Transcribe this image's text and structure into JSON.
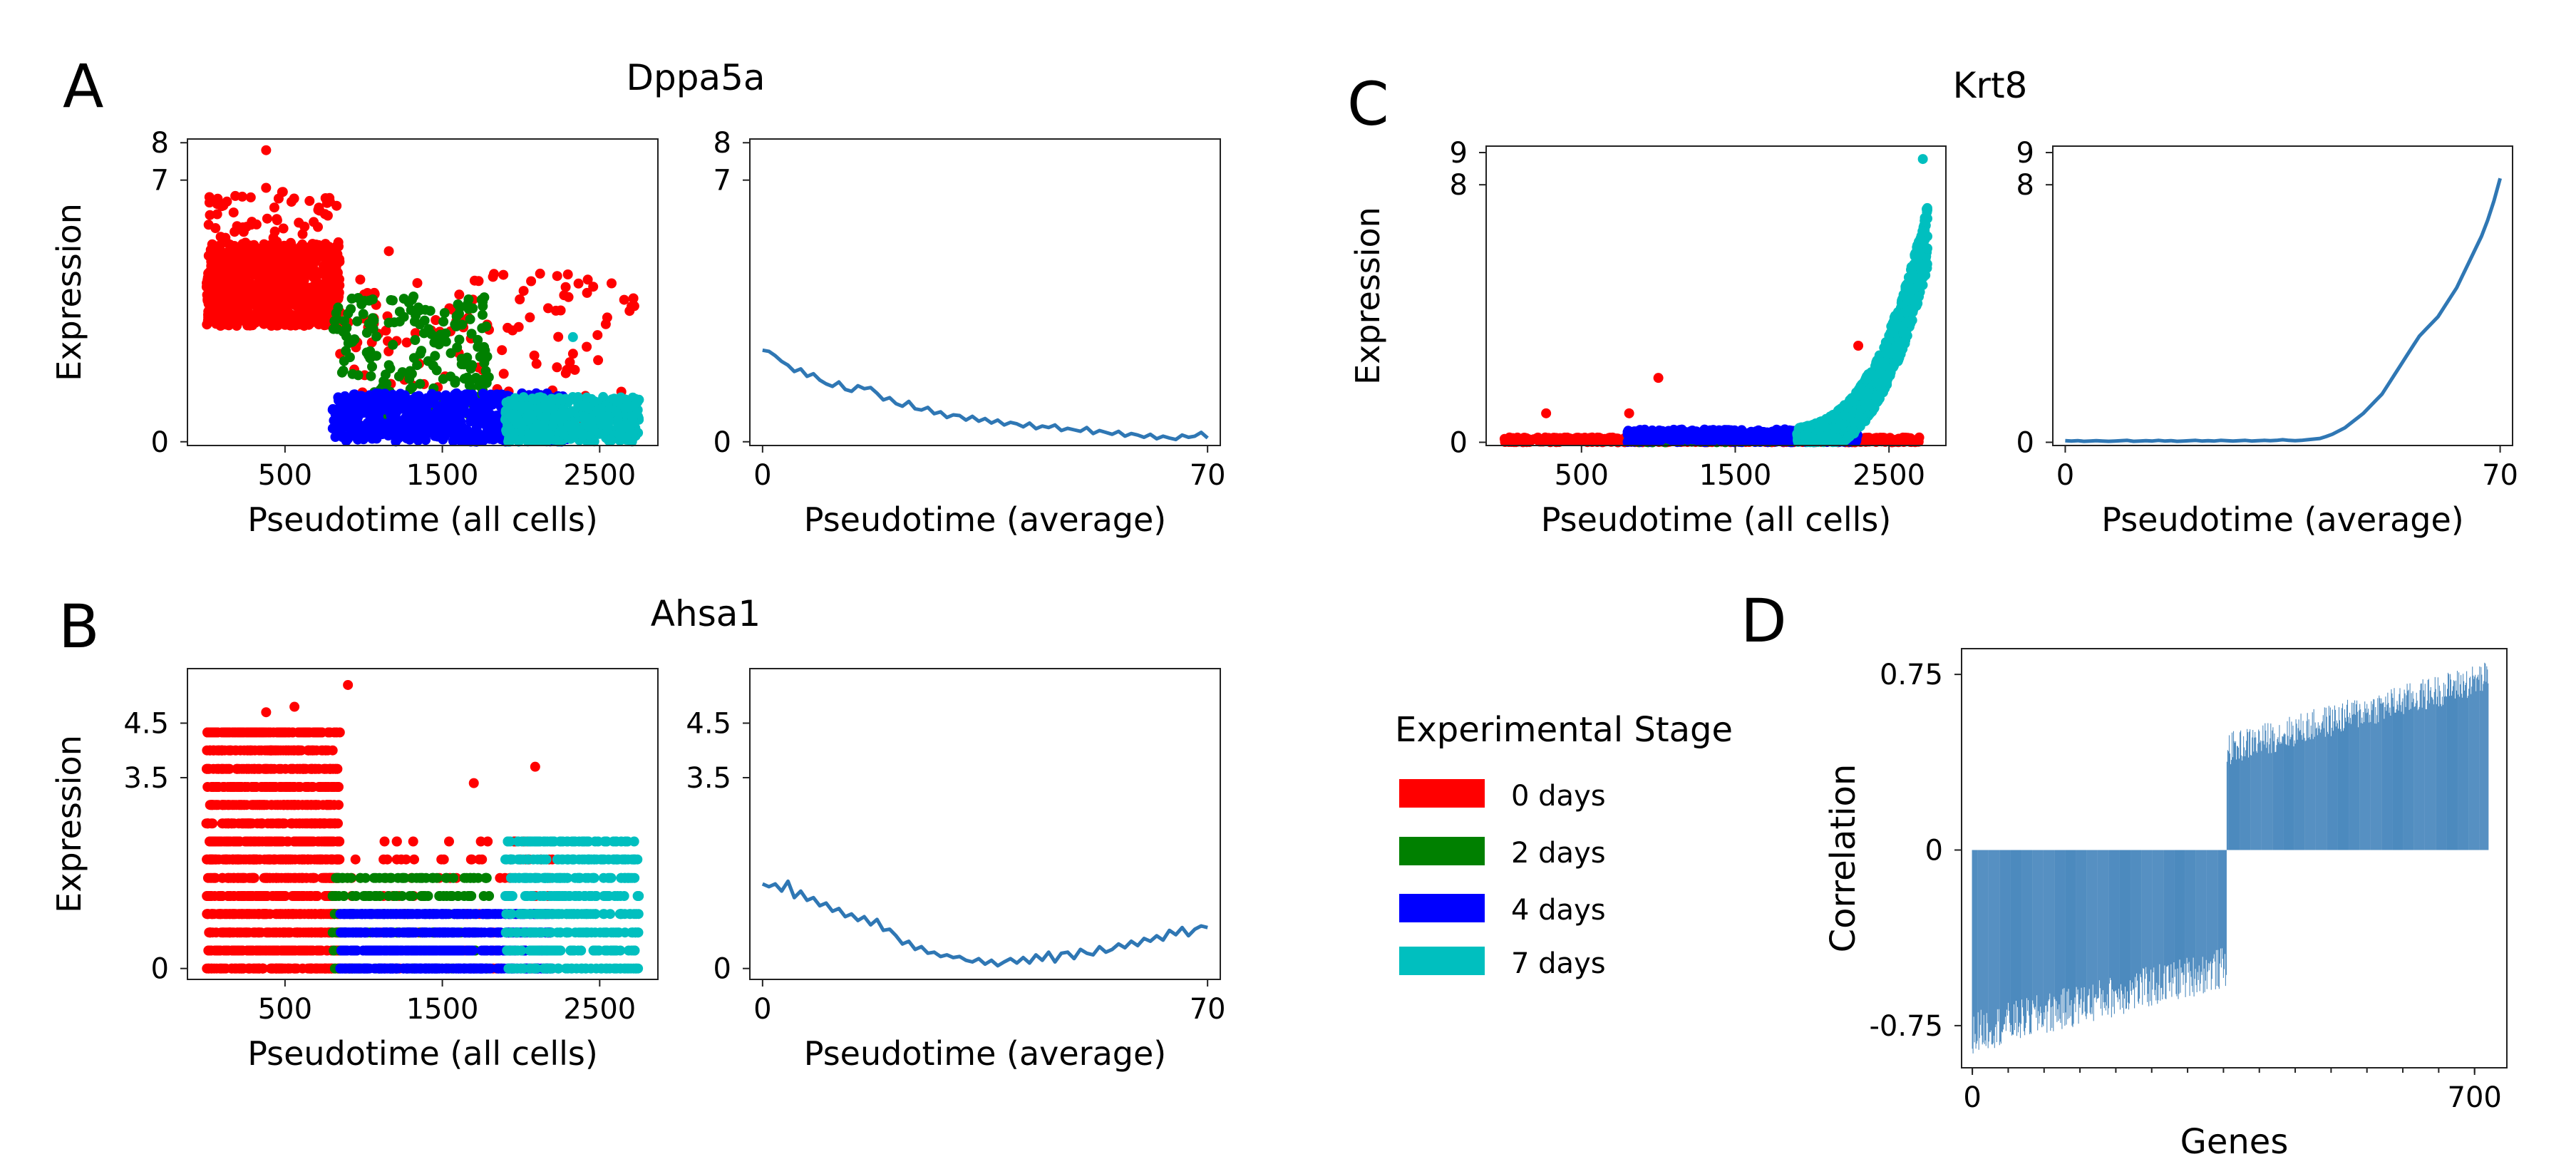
{
  "panel_letters": [
    "A",
    "B",
    "C",
    "D"
  ],
  "legend": {
    "title": "Experimental Stage",
    "entries": [
      {
        "label": "0 days",
        "color": "#ff0000"
      },
      {
        "label": "2 days",
        "color": "#008000"
      },
      {
        "label": "4 days",
        "color": "#0000ff"
      },
      {
        "label": "7 days",
        "color": "#00bfbf"
      }
    ]
  },
  "line_color": "#2f77b4",
  "chart_data": [
    {
      "id": "A-scatter",
      "type": "scatter",
      "panel": "A",
      "title": "Dppa5a",
      "xlabel": "Pseudotime (all cells)",
      "ylabel": "Expression",
      "xlim": [
        -120,
        2870
      ],
      "ylim": [
        -0.1,
        8.1
      ],
      "xticks": [
        500,
        1500,
        2500
      ],
      "yticks": [
        0,
        7,
        8
      ],
      "clusters": [
        {
          "stage": "0 days",
          "x": [
            0,
            850
          ],
          "y": [
            3.1,
            5.3
          ],
          "n": 900
        },
        {
          "stage": "0 days",
          "x": [
            0,
            850
          ],
          "y": [
            4.8,
            6.8
          ],
          "n": 70
        },
        {
          "stage": "0 days",
          "x": [
            850,
            2750
          ],
          "y": [
            0.5,
            4.5
          ],
          "n": 130
        },
        {
          "stage": "2 days",
          "x": [
            800,
            1800
          ],
          "y": [
            0.6,
            3.9
          ],
          "n": 200
        },
        {
          "stage": "4 days",
          "x": [
            800,
            2300
          ],
          "y": [
            0.0,
            1.3
          ],
          "n": 600
        },
        {
          "stage": "7 days",
          "x": [
            1900,
            2750
          ],
          "y": [
            0.0,
            1.2
          ],
          "n": 500
        }
      ],
      "points": [
        {
          "stage": "0 days",
          "x": 380,
          "y": 7.8
        },
        {
          "stage": "0 days",
          "x": 20,
          "y": 6.4
        },
        {
          "stage": "0 days",
          "x": 1160,
          "y": 5.1
        },
        {
          "stage": "0 days",
          "x": 2690,
          "y": 3.5
        },
        {
          "stage": "7 days",
          "x": 2330,
          "y": 2.8
        }
      ]
    },
    {
      "id": "A-line",
      "type": "line",
      "panel": "A",
      "xlabel": "Pseudotime (average)",
      "ylabel": "",
      "xlim": [
        -2,
        72
      ],
      "ylim": [
        -0.1,
        8.1
      ],
      "xticks": [
        0,
        70
      ],
      "yticks": [
        0,
        7,
        8
      ],
      "x": [
        0,
        1,
        2,
        3,
        4,
        5,
        6,
        7,
        8,
        9,
        10,
        11,
        12,
        13,
        14,
        15,
        16,
        17,
        18,
        19,
        20,
        21,
        22,
        23,
        24,
        25,
        26,
        27,
        28,
        29,
        30,
        31,
        32,
        33,
        34,
        35,
        36,
        37,
        38,
        39,
        40,
        41,
        42,
        43,
        44,
        45,
        46,
        47,
        48,
        49,
        50,
        51,
        52,
        53,
        54,
        55,
        56,
        57,
        58,
        59,
        60,
        61,
        62,
        63,
        64,
        65,
        66,
        67,
        68,
        69,
        70
      ],
      "y": [
        2.45,
        2.42,
        2.3,
        2.15,
        2.05,
        1.88,
        1.95,
        1.75,
        1.82,
        1.65,
        1.55,
        1.48,
        1.6,
        1.4,
        1.35,
        1.5,
        1.42,
        1.45,
        1.3,
        1.12,
        1.18,
        1.02,
        0.95,
        1.08,
        0.88,
        0.85,
        0.92,
        0.75,
        0.8,
        0.65,
        0.72,
        0.7,
        0.58,
        0.68,
        0.55,
        0.62,
        0.5,
        0.58,
        0.45,
        0.52,
        0.48,
        0.4,
        0.5,
        0.35,
        0.42,
        0.38,
        0.45,
        0.3,
        0.36,
        0.32,
        0.28,
        0.38,
        0.22,
        0.3,
        0.25,
        0.2,
        0.28,
        0.15,
        0.22,
        0.18,
        0.12,
        0.2,
        0.08,
        0.15,
        0.1,
        0.06,
        0.18,
        0.12,
        0.15,
        0.25,
        0.1
      ]
    },
    {
      "id": "B-scatter",
      "type": "scatter",
      "panel": "B",
      "title": "Ahsa1",
      "xlabel": "Pseudotime (all cells)",
      "ylabel": "Expression",
      "xlim": [
        -120,
        2870
      ],
      "ylim": [
        -0.2,
        5.5
      ],
      "xticks": [
        500,
        1500,
        2500
      ],
      "yticks": [
        0,
        3.5,
        4.5
      ],
      "discrete_levels": [
        0,
        0.33,
        0.66,
        1,
        1.33,
        1.66,
        2,
        2.33,
        2.66,
        3,
        3.33,
        3.66,
        4,
        4.33
      ],
      "clusters": [
        {
          "stage": "0 days",
          "x": [
            0,
            850
          ],
          "levels_max": 14,
          "n": 1400
        },
        {
          "stage": "0 days",
          "x": [
            850,
            2200
          ],
          "levels_max": 8,
          "n": 120
        },
        {
          "stage": "2 days",
          "x": [
            800,
            1800
          ],
          "levels_max": 6,
          "n": 250
        },
        {
          "stage": "4 days",
          "x": [
            850,
            2200
          ],
          "levels_max": 4,
          "n": 700
        },
        {
          "stage": "7 days",
          "x": [
            1900,
            2750
          ],
          "levels_max": 8,
          "n": 500
        }
      ],
      "points": [
        {
          "stage": "0 days",
          "x": 900,
          "y": 5.2
        },
        {
          "stage": "0 days",
          "x": 560,
          "y": 4.8
        },
        {
          "stage": "0 days",
          "x": 380,
          "y": 4.7
        },
        {
          "stage": "0 days",
          "x": 2090,
          "y": 3.7
        },
        {
          "stage": "0 days",
          "x": 1700,
          "y": 3.4
        }
      ]
    },
    {
      "id": "B-line",
      "type": "line",
      "panel": "B",
      "xlabel": "Pseudotime (average)",
      "ylabel": "",
      "xlim": [
        -2,
        72
      ],
      "ylim": [
        -0.2,
        5.5
      ],
      "xticks": [
        0,
        70
      ],
      "yticks": [
        0,
        3.5,
        4.5
      ],
      "x": [
        0,
        1,
        2,
        3,
        4,
        5,
        6,
        7,
        8,
        9,
        10,
        11,
        12,
        13,
        14,
        15,
        16,
        17,
        18,
        19,
        20,
        21,
        22,
        23,
        24,
        25,
        26,
        27,
        28,
        29,
        30,
        31,
        32,
        33,
        34,
        35,
        36,
        37,
        38,
        39,
        40,
        41,
        42,
        43,
        44,
        45,
        46,
        47,
        48,
        49,
        50,
        51,
        52,
        53,
        54,
        55,
        56,
        57,
        58,
        59,
        60,
        61,
        62,
        63,
        64,
        65,
        66,
        67,
        68,
        69,
        70
      ],
      "y": [
        1.55,
        1.5,
        1.55,
        1.42,
        1.6,
        1.3,
        1.42,
        1.25,
        1.3,
        1.15,
        1.2,
        1.05,
        1.1,
        0.95,
        1.0,
        0.88,
        0.95,
        0.8,
        0.9,
        0.7,
        0.72,
        0.6,
        0.45,
        0.5,
        0.35,
        0.4,
        0.28,
        0.3,
        0.22,
        0.25,
        0.2,
        0.22,
        0.15,
        0.12,
        0.18,
        0.08,
        0.15,
        0.05,
        0.12,
        0.18,
        0.1,
        0.2,
        0.1,
        0.25,
        0.15,
        0.3,
        0.12,
        0.28,
        0.3,
        0.18,
        0.35,
        0.28,
        0.25,
        0.4,
        0.3,
        0.35,
        0.45,
        0.38,
        0.5,
        0.42,
        0.55,
        0.5,
        0.6,
        0.52,
        0.7,
        0.62,
        0.75,
        0.6,
        0.72,
        0.78,
        0.75
      ]
    },
    {
      "id": "C-scatter",
      "type": "scatter",
      "panel": "C",
      "title": "Krt8",
      "xlabel": "Pseudotime (all cells)",
      "ylabel": "Expression",
      "xlim": [
        -120,
        2870
      ],
      "ylim": [
        -0.1,
        9.2
      ],
      "xticks": [
        500,
        1500,
        2500
      ],
      "yticks": [
        0,
        8,
        9
      ],
      "clusters": [
        {
          "stage": "0 days",
          "x": [
            0,
            2700
          ],
          "y": [
            0.0,
            0.15
          ],
          "n": 700
        },
        {
          "stage": "2 days",
          "x": [
            800,
            1800
          ],
          "y": [
            0.0,
            0.2
          ],
          "n": 150
        },
        {
          "stage": "4 days",
          "x": [
            800,
            2300
          ],
          "y": [
            0.0,
            0.4
          ],
          "n": 400
        },
        {
          "stage": "7 days",
          "x": [
            1900,
            2750
          ],
          "curve": "exponential",
          "n": 1200
        }
      ],
      "points": [
        {
          "stage": "0 days",
          "x": 1000,
          "y": 2.0
        },
        {
          "stage": "0 days",
          "x": 270,
          "y": 0.9
        },
        {
          "stage": "0 days",
          "x": 810,
          "y": 0.9
        },
        {
          "stage": "0 days",
          "x": 2300,
          "y": 3.0
        },
        {
          "stage": "7 days",
          "x": 2720,
          "y": 8.8
        }
      ]
    },
    {
      "id": "C-line",
      "type": "line",
      "panel": "C",
      "xlabel": "Pseudotime (average)",
      "ylabel": "",
      "xlim": [
        -2,
        72
      ],
      "ylim": [
        -0.1,
        9.2
      ],
      "xticks": [
        0,
        70
      ],
      "yticks": [
        0,
        8,
        9
      ],
      "x": [
        0,
        1,
        2,
        3,
        4,
        5,
        6,
        7,
        8,
        9,
        10,
        11,
        12,
        13,
        14,
        15,
        16,
        17,
        18,
        19,
        20,
        21,
        22,
        23,
        24,
        25,
        26,
        27,
        28,
        29,
        30,
        31,
        32,
        33,
        34,
        35,
        36,
        37,
        38,
        39,
        40,
        41,
        42,
        43,
        44,
        45,
        46,
        47,
        48,
        49,
        50,
        51,
        52,
        53,
        54,
        55,
        56,
        57,
        58,
        59,
        60,
        61,
        62,
        63,
        64,
        65,
        66,
        67,
        68,
        69,
        70
      ],
      "y": [
        0.05,
        0.04,
        0.05,
        0.03,
        0.04,
        0.05,
        0.04,
        0.03,
        0.04,
        0.05,
        0.06,
        0.03,
        0.04,
        0.05,
        0.04,
        0.06,
        0.04,
        0.05,
        0.03,
        0.04,
        0.05,
        0.06,
        0.04,
        0.05,
        0.04,
        0.06,
        0.05,
        0.04,
        0.05,
        0.06,
        0.04,
        0.05,
        0.06,
        0.05,
        0.06,
        0.08,
        0.06,
        0.05,
        0.06,
        0.08,
        0.1,
        0.12,
        0.18,
        0.25,
        0.35,
        0.45,
        0.6,
        0.75,
        0.9,
        1.1,
        1.3,
        1.5,
        1.8,
        2.1,
        2.4,
        2.7,
        3.0,
        3.3,
        3.5,
        3.7,
        3.9,
        4.2,
        4.5,
        4.8,
        5.2,
        5.6,
        6.0,
        6.4,
        6.9,
        7.5,
        8.2
      ]
    },
    {
      "id": "D-bars",
      "type": "bar",
      "panel": "D",
      "xlabel": "Genes",
      "ylabel": "Correlation",
      "xlim": [
        -15,
        745
      ],
      "ylim": [
        -0.93,
        0.86
      ],
      "xticks": [
        0,
        700
      ],
      "yticks": [
        -0.75,
        0,
        0.75
      ],
      "n_genes": 720,
      "negative_genes": [
        0,
        355
      ],
      "positive_genes": [
        355,
        720
      ],
      "negative_range": [
        -0.78,
        -0.5
      ],
      "positive_range": [
        0.43,
        0.74
      ]
    }
  ]
}
